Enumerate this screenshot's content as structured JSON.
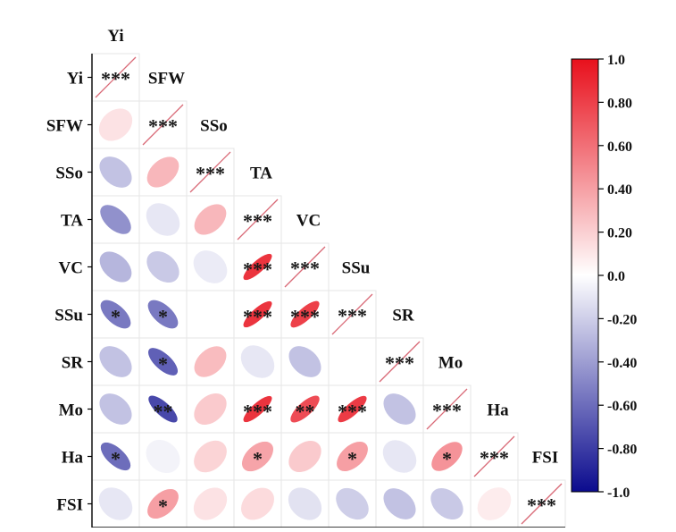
{
  "chart_data": {
    "type": "heatmap",
    "variables": [
      "Yi",
      "SFW",
      "SSo",
      "TA",
      "VC",
      "SSu",
      "SR",
      "Mo",
      "Ha",
      "FSI"
    ],
    "layout": "lower-triangle",
    "diagonal_label": "***",
    "cells": [
      {
        "row": "SFW",
        "col": "Yi",
        "r": 0.12,
        "sig": ""
      },
      {
        "row": "SSo",
        "col": "Yi",
        "r": -0.25,
        "sig": ""
      },
      {
        "row": "SSo",
        "col": "SFW",
        "r": 0.3,
        "sig": ""
      },
      {
        "row": "TA",
        "col": "Yi",
        "r": -0.45,
        "sig": ""
      },
      {
        "row": "TA",
        "col": "SFW",
        "r": -0.1,
        "sig": ""
      },
      {
        "row": "TA",
        "col": "SSo",
        "r": 0.3,
        "sig": ""
      },
      {
        "row": "VC",
        "col": "Yi",
        "r": -0.3,
        "sig": ""
      },
      {
        "row": "VC",
        "col": "SFW",
        "r": -0.22,
        "sig": ""
      },
      {
        "row": "VC",
        "col": "SSo",
        "r": -0.08,
        "sig": ""
      },
      {
        "row": "VC",
        "col": "TA",
        "r": 0.85,
        "sig": "***"
      },
      {
        "row": "SSu",
        "col": "Yi",
        "r": -0.55,
        "sig": "*"
      },
      {
        "row": "SSu",
        "col": "SFW",
        "r": -0.55,
        "sig": "*"
      },
      {
        "row": "SSu",
        "col": "SSo",
        "r": 0.0,
        "sig": ""
      },
      {
        "row": "SSu",
        "col": "TA",
        "r": 0.85,
        "sig": "***"
      },
      {
        "row": "SSu",
        "col": "VC",
        "r": 0.8,
        "sig": "***"
      },
      {
        "row": "SR",
        "col": "Yi",
        "r": -0.25,
        "sig": ""
      },
      {
        "row": "SR",
        "col": "SFW",
        "r": -0.65,
        "sig": "*"
      },
      {
        "row": "SR",
        "col": "SSo",
        "r": 0.28,
        "sig": ""
      },
      {
        "row": "SR",
        "col": "TA",
        "r": -0.1,
        "sig": ""
      },
      {
        "row": "SR",
        "col": "VC",
        "r": -0.25,
        "sig": ""
      },
      {
        "row": "SR",
        "col": "SSu",
        "r": 0.0,
        "sig": ""
      },
      {
        "row": "Mo",
        "col": "Yi",
        "r": -0.25,
        "sig": ""
      },
      {
        "row": "Mo",
        "col": "SFW",
        "r": -0.75,
        "sig": "**"
      },
      {
        "row": "Mo",
        "col": "SSo",
        "r": 0.22,
        "sig": ""
      },
      {
        "row": "Mo",
        "col": "TA",
        "r": 0.85,
        "sig": "***"
      },
      {
        "row": "Mo",
        "col": "VC",
        "r": 0.75,
        "sig": "**"
      },
      {
        "row": "Mo",
        "col": "SSu",
        "r": 0.82,
        "sig": "***"
      },
      {
        "row": "Mo",
        "col": "SR",
        "r": -0.25,
        "sig": ""
      },
      {
        "row": "Ha",
        "col": "Yi",
        "r": -0.6,
        "sig": "*"
      },
      {
        "row": "Ha",
        "col": "SFW",
        "r": -0.05,
        "sig": ""
      },
      {
        "row": "Ha",
        "col": "SSo",
        "r": 0.18,
        "sig": ""
      },
      {
        "row": "Ha",
        "col": "TA",
        "r": 0.38,
        "sig": "*"
      },
      {
        "row": "Ha",
        "col": "VC",
        "r": 0.22,
        "sig": ""
      },
      {
        "row": "Ha",
        "col": "SSu",
        "r": 0.4,
        "sig": "*"
      },
      {
        "row": "Ha",
        "col": "SR",
        "r": -0.1,
        "sig": ""
      },
      {
        "row": "Ha",
        "col": "Mo",
        "r": 0.45,
        "sig": "*"
      },
      {
        "row": "FSI",
        "col": "Yi",
        "r": -0.1,
        "sig": ""
      },
      {
        "row": "FSI",
        "col": "SFW",
        "r": 0.4,
        "sig": "*"
      },
      {
        "row": "FSI",
        "col": "SSo",
        "r": 0.12,
        "sig": ""
      },
      {
        "row": "FSI",
        "col": "TA",
        "r": 0.15,
        "sig": ""
      },
      {
        "row": "FSI",
        "col": "VC",
        "r": -0.12,
        "sig": ""
      },
      {
        "row": "FSI",
        "col": "SSu",
        "r": -0.2,
        "sig": ""
      },
      {
        "row": "FSI",
        "col": "SR",
        "r": -0.25,
        "sig": ""
      },
      {
        "row": "FSI",
        "col": "Mo",
        "r": -0.22,
        "sig": ""
      },
      {
        "row": "FSI",
        "col": "Ha",
        "r": 0.08,
        "sig": ""
      }
    ],
    "colorbar": {
      "range": [
        -1.0,
        1.0
      ],
      "tick_values": [
        1.0,
        0.8,
        0.6,
        0.4,
        0.2,
        0.0,
        -0.2,
        -0.4,
        -0.6,
        -0.8,
        -1.0
      ],
      "tick_labels": [
        "1.0",
        "0.80",
        "0.60",
        "0.40",
        "0.20",
        "0.0",
        "-0.20",
        "-0.40",
        "-0.60",
        "-0.80",
        "-1.0"
      ],
      "colors": {
        "max": "#e8101c",
        "mid": "#ffffff",
        "min": "#0b0b8e"
      }
    }
  }
}
